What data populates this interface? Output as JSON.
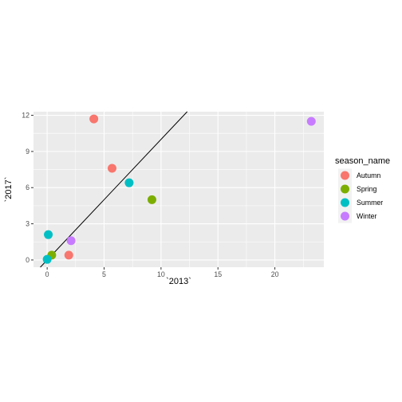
{
  "chart_data": {
    "type": "scatter",
    "title": "",
    "xlabel": "`2013`",
    "ylabel": "`2017`",
    "xlim": [
      -1.2,
      24.3
    ],
    "ylim": [
      -0.6,
      12.3
    ],
    "x_ticks": [
      0,
      5,
      10,
      15,
      20
    ],
    "y_ticks": [
      0,
      3,
      6,
      9,
      12
    ],
    "grid": true,
    "panel_background": "#ebebeb",
    "reference_line": {
      "type": "abline",
      "slope": 1,
      "intercept": 0,
      "color": "#000000"
    },
    "legend": {
      "title": "season_name",
      "position": "right",
      "entries": [
        {
          "label": "Autumn",
          "color": "#F8766D"
        },
        {
          "label": "Spring",
          "color": "#7CAE00"
        },
        {
          "label": "Summer",
          "color": "#00BFC4"
        },
        {
          "label": "Winter",
          "color": "#C77CFF"
        }
      ]
    },
    "series": [
      {
        "name": "Autumn",
        "color": "#F8766D",
        "points": [
          [
            4.1,
            11.7
          ],
          [
            5.7,
            7.6
          ],
          [
            1.9,
            0.4
          ]
        ]
      },
      {
        "name": "Spring",
        "color": "#7CAE00",
        "points": [
          [
            9.2,
            5.0
          ],
          [
            0.4,
            0.4
          ]
        ]
      },
      {
        "name": "Summer",
        "color": "#00BFC4",
        "points": [
          [
            7.2,
            6.4
          ],
          [
            0.1,
            2.1
          ],
          [
            0.0,
            0.05
          ]
        ]
      },
      {
        "name": "Winter",
        "color": "#C77CFF",
        "points": [
          [
            23.2,
            11.5
          ],
          [
            2.1,
            1.6
          ]
        ]
      }
    ]
  }
}
